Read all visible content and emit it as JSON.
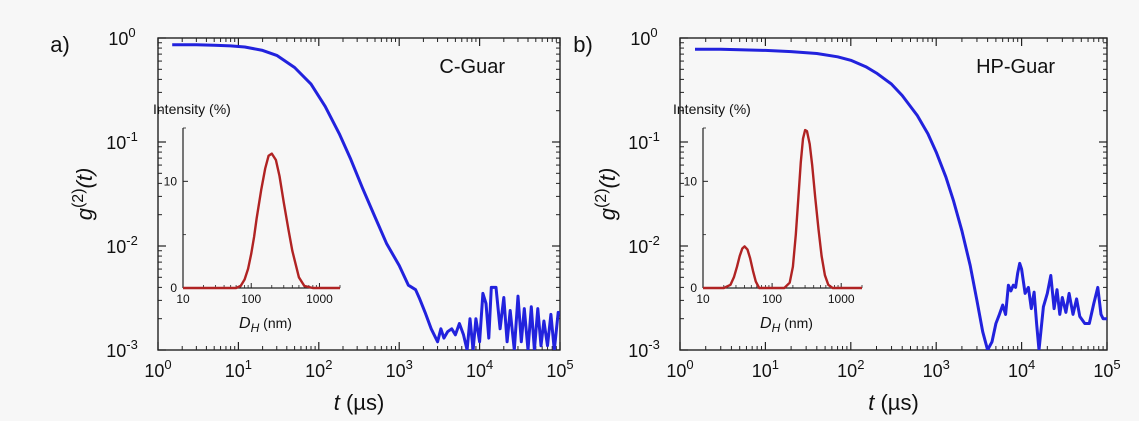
{
  "chart_data": [
    {
      "type": "line",
      "panel_label": "a)",
      "sample_label": "C-Guar",
      "xscale": "log",
      "yscale": "log",
      "xlim": [
        1,
        100000
      ],
      "ylim": [
        0.001,
        1
      ],
      "xlabel": {
        "main": "t",
        "unit": "(µs)"
      },
      "ylabel": {
        "main": "g",
        "sup": "(2)",
        "arg": "(t)"
      },
      "x_ticks": [
        {
          "base": "10",
          "exp": "0"
        },
        {
          "base": "10",
          "exp": "1"
        },
        {
          "base": "10",
          "exp": "2"
        },
        {
          "base": "10",
          "exp": "3"
        },
        {
          "base": "10",
          "exp": "4"
        },
        {
          "base": "10",
          "exp": "5"
        }
      ],
      "y_ticks": [
        {
          "base": "10",
          "exp": "0"
        },
        {
          "base": "10",
          "exp": "-1"
        },
        {
          "base": "10",
          "exp": "-2"
        },
        {
          "base": "10",
          "exp": "-3"
        }
      ],
      "series": [
        {
          "color": "#2222dd",
          "x": [
            1.5,
            3,
            5,
            8,
            12,
            20,
            30,
            50,
            80,
            120,
            180,
            250,
            350,
            500,
            700,
            1000,
            1300,
            1600,
            1800,
            2100,
            2500,
            3000,
            3300,
            3600,
            4000,
            4500,
            5000,
            5600,
            6300,
            7000,
            7600,
            8300,
            9000,
            10000,
            11000,
            12000,
            13000,
            14000,
            16000,
            18000,
            20000,
            22000,
            24000,
            27000,
            30000,
            33000,
            36000,
            40000,
            44000,
            48000,
            53000,
            58000,
            63000,
            70000,
            77000,
            85000,
            95000,
            100000
          ],
          "y": [
            0.86,
            0.86,
            0.85,
            0.84,
            0.82,
            0.76,
            0.68,
            0.52,
            0.36,
            0.22,
            0.12,
            0.068,
            0.036,
            0.019,
            0.0105,
            0.0065,
            0.0042,
            0.0038,
            0.0031,
            0.0023,
            0.0016,
            0.0012,
            0.0016,
            0.0013,
            0.0015,
            0.0016,
            0.0014,
            0.0018,
            0.0014,
            0.001,
            0.002,
            0.001,
            0.002,
            0.0012,
            0.0035,
            0.0028,
            0.0013,
            0.004,
            0.004,
            0.0016,
            0.0032,
            0.0012,
            0.0024,
            0.001,
            0.0033,
            0.0012,
            0.0025,
            0.001,
            0.0026,
            0.001,
            0.0025,
            0.0011,
            0.0019,
            0.0011,
            0.0022,
            0.001,
            0.0023,
            0.0022
          ]
        }
      ],
      "inset": {
        "ylabel": "Intensity (%)",
        "xlabel": {
          "main": "D",
          "sub": "H",
          "unit": "(nm)"
        },
        "xscale": "log",
        "xlim": [
          10,
          2000
        ],
        "ylim": [
          0,
          15
        ],
        "x_ticks": [
          "10",
          "100",
          "1000"
        ],
        "y_ticks": [
          "0",
          "10"
        ],
        "series": [
          {
            "color": "#b02323",
            "x": [
              10,
              40,
              60,
              70,
              80,
              90,
              100,
              110,
              120,
              140,
              160,
              180,
              200,
              230,
              260,
              300,
              350,
              400,
              500,
              600,
              800,
              1000,
              1500,
              2000
            ],
            "y": [
              0,
              0,
              0,
              0.2,
              0.8,
              1.8,
              3.2,
              4.8,
              6.5,
              9.2,
              11.2,
              12.4,
              12.6,
              12.0,
              10.5,
              8.0,
              5.5,
              3.5,
              1.0,
              0.2,
              0,
              0,
              0,
              0
            ]
          }
        ]
      }
    },
    {
      "type": "line",
      "panel_label": "b)",
      "sample_label": "HP-Guar",
      "xscale": "log",
      "yscale": "log",
      "xlim": [
        1,
        100000
      ],
      "ylim": [
        0.001,
        1
      ],
      "xlabel": {
        "main": "t",
        "unit": "(µs)"
      },
      "ylabel": {
        "main": "g",
        "sup": "(2)",
        "arg": "(t)"
      },
      "x_ticks": [
        {
          "base": "10",
          "exp": "0"
        },
        {
          "base": "10",
          "exp": "1"
        },
        {
          "base": "10",
          "exp": "2"
        },
        {
          "base": "10",
          "exp": "3"
        },
        {
          "base": "10",
          "exp": "4"
        },
        {
          "base": "10",
          "exp": "5"
        }
      ],
      "y_ticks": [
        {
          "base": "10",
          "exp": "0"
        },
        {
          "base": "10",
          "exp": "-1"
        },
        {
          "base": "10",
          "exp": "-2"
        },
        {
          "base": "10",
          "exp": "-3"
        }
      ],
      "series": [
        {
          "color": "#2222dd",
          "x": [
            1.5,
            3,
            5,
            10,
            20,
            40,
            70,
            100,
            150,
            200,
            300,
            400,
            600,
            800,
            1000,
            1300,
            1600,
            2000,
            2500,
            3000,
            3500,
            4000,
            4500,
            5000,
            5500,
            6000,
            6500,
            7000,
            7500,
            8000,
            8500,
            9000,
            9500,
            10000,
            11000,
            12000,
            13000,
            14000,
            15000,
            16000,
            18000,
            20000,
            22000,
            24000,
            26000,
            28000,
            30000,
            33000,
            36000,
            40000,
            44000,
            48000,
            55000,
            62000,
            70000,
            78000,
            85000,
            90000,
            100000
          ],
          "y": [
            0.78,
            0.78,
            0.77,
            0.76,
            0.74,
            0.71,
            0.66,
            0.61,
            0.53,
            0.46,
            0.36,
            0.28,
            0.18,
            0.12,
            0.08,
            0.046,
            0.027,
            0.014,
            0.0065,
            0.003,
            0.0015,
            0.001,
            0.0012,
            0.0018,
            0.0022,
            0.0027,
            0.0022,
            0.0042,
            0.0037,
            0.0042,
            0.004,
            0.0055,
            0.0068,
            0.006,
            0.0035,
            0.004,
            0.0025,
            0.0036,
            0.0018,
            0.001,
            0.0026,
            0.0035,
            0.0052,
            0.0025,
            0.0038,
            0.0022,
            0.0032,
            0.0023,
            0.0035,
            0.0022,
            0.0031,
            0.0021,
            0.0018,
            0.0018,
            0.0028,
            0.004,
            0.0022,
            0.002,
            0.002
          ]
        }
      ],
      "inset": {
        "ylabel": "Intensity (%)",
        "xlabel": {
          "main": "D",
          "sub": "H",
          "unit": "(nm)"
        },
        "xscale": "log",
        "xlim": [
          10,
          2000
        ],
        "ylim": [
          0,
          15
        ],
        "x_ticks": [
          "10",
          "100",
          "1000"
        ],
        "y_ticks": [
          "0",
          "10"
        ],
        "series": [
          {
            "color": "#b02323",
            "x": [
              10,
              20,
              25,
              28,
              31,
              34,
              37,
              40,
              44,
              48,
              53,
              58,
              65,
              80,
              150,
              180,
              200,
              220,
              240,
              260,
              280,
              300,
              320,
              350,
              380,
              420,
              470,
              520,
              580,
              650,
              750,
              900,
              1200,
              2000
            ],
            "y": [
              0,
              0,
              0.3,
              1.0,
              2.0,
              3.0,
              3.7,
              3.9,
              3.6,
              2.8,
              1.6,
              0.6,
              0,
              0,
              0,
              0.5,
              2.0,
              5.0,
              8.5,
              11.8,
              14.0,
              14.8,
              14.7,
              13.5,
              11.5,
              8.5,
              5.5,
              3.0,
              1.2,
              0.3,
              0,
              0,
              0,
              0
            ]
          }
        ]
      }
    }
  ]
}
